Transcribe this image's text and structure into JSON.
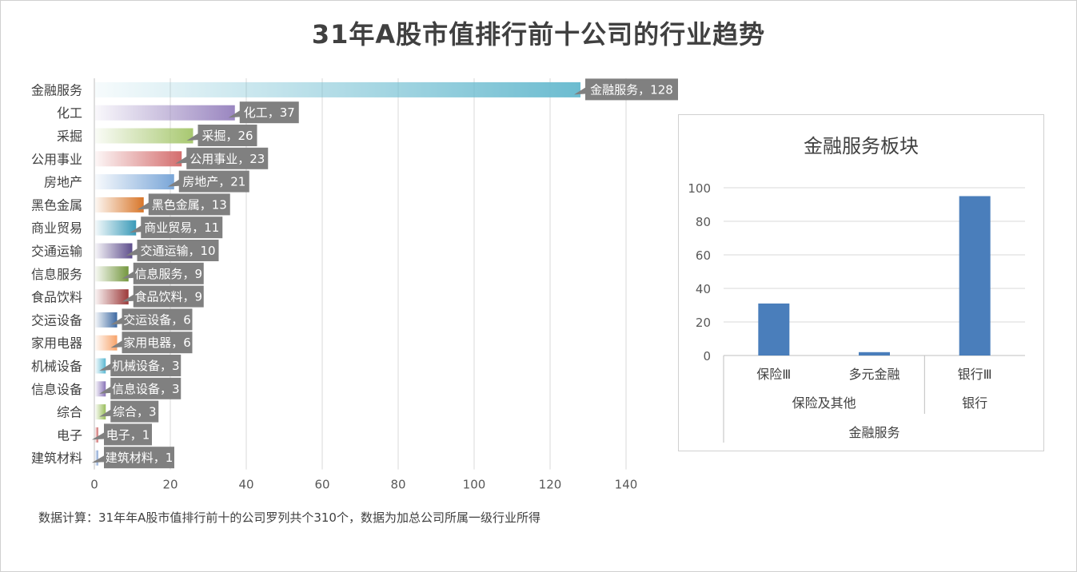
{
  "chart_data": [
    {
      "type": "bar",
      "orientation": "horizontal",
      "title": "31年A股市值排行前十公司的行业趋势",
      "xlim": [
        0,
        140
      ],
      "xticks": [
        0,
        20,
        40,
        60,
        80,
        100,
        120,
        140
      ],
      "grid": true,
      "legend": "none",
      "categories": [
        "金融服务",
        "化工",
        "采掘",
        "公用事业",
        "房地产",
        "黑色金属",
        "商业贸易",
        "交通运输",
        "信息服务",
        "食品饮料",
        "交运设备",
        "家用电器",
        "机械设备",
        "信息设备",
        "综合",
        "电子",
        "建筑材料"
      ],
      "values": [
        128,
        37,
        26,
        23,
        21,
        13,
        11,
        10,
        9,
        9,
        6,
        6,
        3,
        3,
        3,
        1,
        1
      ],
      "data_labels": [
        "金融服务，128",
        "化工，37",
        "采掘，26",
        "公用事业，23",
        "房地产，21",
        "黑色金属，13",
        "商业贸易，11",
        "交通运输，10",
        "信息服务，9",
        "食品饮料，9",
        "交运设备，6",
        "家用电器，6",
        "机械设备，3",
        "信息设备，3",
        "综合，3",
        "电子，1",
        "建筑材料，1"
      ],
      "colors": [
        "#6cbcd0",
        "#9a86c0",
        "#a8c870",
        "#d46e6e",
        "#7aa6d8",
        "#d8762a",
        "#3a9ab8",
        "#5e4e8c",
        "#74973e",
        "#9c3a3a",
        "#3e6aa2",
        "#f7a36a",
        "#5ab8d2",
        "#8a74b8",
        "#9abe5c",
        "#c85a5a",
        "#7a9cd0"
      ],
      "label_bg": "#808080"
    },
    {
      "type": "bar",
      "title": "金融服务板块",
      "ylim": [
        0,
        100
      ],
      "yticks": [
        0,
        20,
        40,
        60,
        80,
        100
      ],
      "grid": true,
      "categories": [
        "保险Ⅲ",
        "多元金融",
        "银行Ⅲ"
      ],
      "values": [
        31,
        2,
        95
      ],
      "groups": [
        {
          "name": "保险及其他",
          "span": [
            0,
            1
          ]
        },
        {
          "name": "银行",
          "span": [
            2,
            2
          ]
        }
      ],
      "top_group": "金融服务",
      "color": "#4a7ebb"
    }
  ],
  "footnote": "数据计算：31年年A股市值排行前十的公司罗列共个310个，数据为加总公司所属一级行业所得"
}
